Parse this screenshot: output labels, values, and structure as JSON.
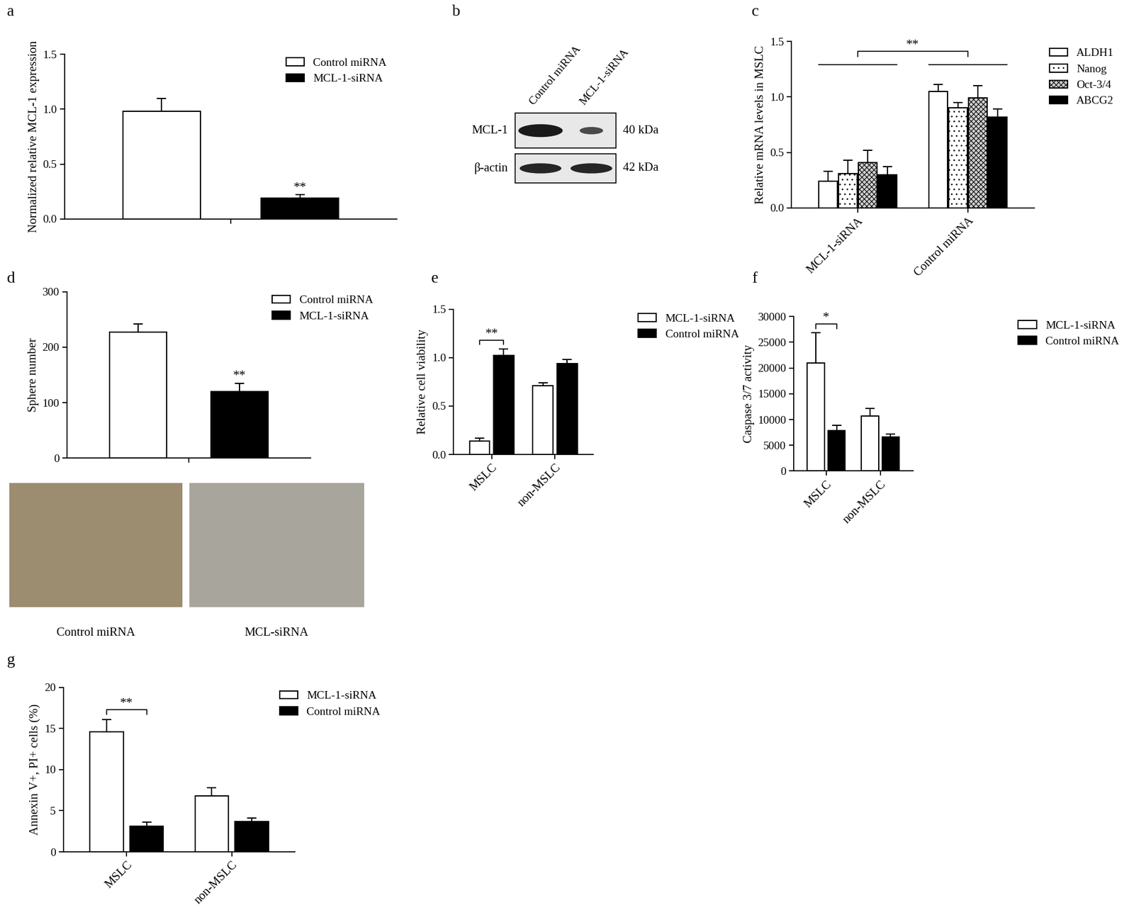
{
  "chart_data": [
    {
      "type": "bar",
      "title": "a",
      "y_label": "Normalized relative MCL-1 expression",
      "categories": [
        null
      ],
      "series": [
        {
          "name": "Control miRNA",
          "color": "#ffffff",
          "values": [
            0.98
          ],
          "errors": [
            0.12
          ]
        },
        {
          "name": "MCL-1-siRNA",
          "color": "#000000",
          "values": [
            0.19
          ],
          "errors": [
            0.03
          ]
        }
      ],
      "ylim": [
        0,
        1.5
      ],
      "yticks": [
        {
          "value": 0,
          "label": "0.0"
        },
        {
          "value": 0.5,
          "label": "0.5"
        },
        {
          "value": 1,
          "label": "1.0"
        },
        {
          "value": 1.5,
          "label": "1.5"
        }
      ],
      "legend": "upper right",
      "annotations": [
        {
          "text": "**",
          "over": "MCL-1-siRNA"
        }
      ]
    },
    {
      "type": "bar",
      "title": "c",
      "y_label": "Relative mRNA levels in MSLC",
      "categories": [
        "MCL-1-siRNA",
        "Control miRNA"
      ],
      "series": [
        {
          "name": "ALDH1",
          "color": "#ffffff",
          "values": [
            0.24,
            1.05
          ],
          "errors": [
            0.09,
            0.06
          ]
        },
        {
          "name": "Nanog",
          "color": "#ffffff",
          "values": [
            0.31,
            0.9
          ],
          "errors": [
            0.12,
            0.05
          ]
        },
        {
          "name": "Oct-3/4",
          "color": "#d0d0d0",
          "values": [
            0.41,
            0.99
          ],
          "errors": [
            0.11,
            0.11
          ]
        },
        {
          "name": "ABCG2",
          "color": "#000000",
          "values": [
            0.3,
            0.82
          ],
          "errors": [
            0.07,
            0.07
          ]
        }
      ],
      "ylim": [
        0,
        1.5
      ],
      "yticks": [
        {
          "value": 0,
          "label": "0.0"
        },
        {
          "value": 0.5,
          "label": "0.5"
        },
        {
          "value": 1,
          "label": "1.0"
        },
        {
          "value": 1.5,
          "label": "1.5"
        }
      ],
      "legend": "upper left",
      "annotations": [
        {
          "text": "**",
          "groups": [
            "MCL-1-siRNA",
            "Control miRNA"
          ]
        }
      ]
    },
    {
      "type": "bar",
      "title": "d",
      "y_label": "Sphere number",
      "categories": [
        null
      ],
      "series": [
        {
          "name": "Control miRNA",
          "color": "#ffffff",
          "values": [
            227
          ],
          "errors": [
            15
          ]
        },
        {
          "name": "MCL-1-siRNA",
          "color": "#000000",
          "values": [
            120
          ],
          "errors": [
            15
          ]
        }
      ],
      "ylim": [
        0,
        300
      ],
      "yticks": [
        0,
        100,
        200,
        300
      ],
      "legend": "upper left",
      "annotations": [
        {
          "text": "**",
          "over": "MCL-1-siRNA"
        }
      ]
    },
    {
      "type": "bar",
      "title": "e",
      "y_label": "Relative cell viability",
      "categories": [
        "MSLC",
        "non-MSLC"
      ],
      "series": [
        {
          "name": "MCL-1-siRNA",
          "color": "#ffffff",
          "values": [
            0.14,
            0.71
          ],
          "errors": [
            0.03,
            0.03
          ]
        },
        {
          "name": "Control miRNA",
          "color": "#000000",
          "values": [
            1.02,
            0.94
          ],
          "errors": [
            0.07,
            0.04
          ]
        }
      ],
      "ylim": [
        0,
        1.5
      ],
      "yticks": [
        {
          "value": 0,
          "label": "0.0"
        },
        {
          "value": 0.5,
          "label": "0.5"
        },
        {
          "value": 1,
          "label": "1.0"
        },
        {
          "value": 1.5,
          "label": "1.5"
        }
      ],
      "legend": "upper left",
      "annotations": [
        {
          "text": "**",
          "bracket": "MSLC"
        }
      ]
    },
    {
      "type": "bar",
      "title": "f",
      "y_label": "Caspase 3/7 activity",
      "categories": [
        "MSLC",
        "non-MSLC"
      ],
      "series": [
        {
          "name": "MCL-1-siRNA",
          "color": "#ffffff",
          "values": [
            21000,
            10700
          ],
          "errors": [
            5800,
            1500
          ]
        },
        {
          "name": "Control miRNA",
          "color": "#000000",
          "values": [
            7900,
            6600
          ],
          "errors": [
            1000,
            600
          ]
        }
      ],
      "ylim": [
        0,
        30000
      ],
      "yticks": [
        0,
        5000,
        10000,
        15000,
        20000,
        25000,
        30000
      ],
      "legend": "upper left",
      "annotations": [
        {
          "text": "*",
          "bracket": "MSLC"
        }
      ]
    },
    {
      "type": "bar",
      "title": "g",
      "y_label": "Annexin V+, PI+ cells (%)",
      "categories": [
        "MSLC",
        "non-MSLC"
      ],
      "series": [
        {
          "name": "MCL-1-siRNA",
          "color": "#ffffff",
          "values": [
            14.6,
            6.8
          ],
          "errors": [
            1.5,
            1.0
          ]
        },
        {
          "name": "Control miRNA",
          "color": "#000000",
          "values": [
            3.1,
            3.7
          ],
          "errors": [
            0.5,
            0.4
          ]
        }
      ],
      "ylim": [
        0,
        20
      ],
      "yticks": [
        0,
        5,
        10,
        15,
        20
      ],
      "legend": "upper left",
      "annotations": [
        {
          "text": "**",
          "bracket": "MSLC"
        }
      ]
    }
  ],
  "blot": {
    "title": "b",
    "lanes": [
      "Control miRNA",
      "MCL-1-siRNA"
    ],
    "rows": [
      {
        "protein": "MCL-1",
        "size": "40 kDa"
      },
      {
        "protein": "β-actin",
        "size": "42 kDa"
      }
    ]
  },
  "images": {
    "captions": [
      "Control miRNA",
      "MCL-siRNA"
    ]
  }
}
